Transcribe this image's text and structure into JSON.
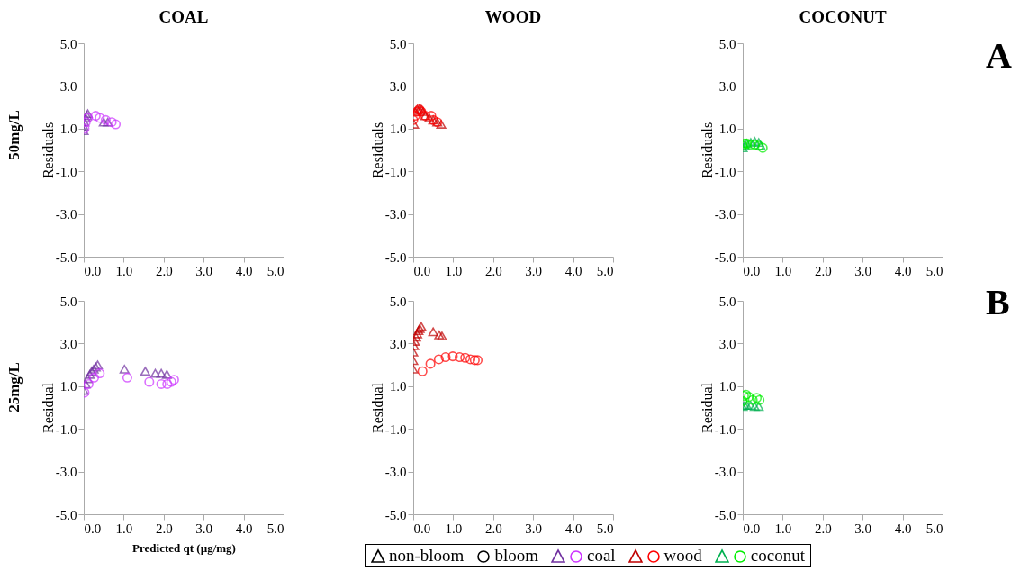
{
  "chart_data": [
    {
      "type": "scatter",
      "title": "COAL",
      "ylabel": "Residuals",
      "annotations": [
        "50mg/L"
      ],
      "legend": "bottom",
      "legend_title": "coal",
      "xlim": [
        0,
        5
      ],
      "ylim": [
        -5,
        5
      ],
      "xticks": [
        {
          "value": 0,
          "label": "0.0"
        },
        {
          "value": 1,
          "label": "1.0"
        },
        {
          "value": 2,
          "label": "2.0"
        },
        {
          "value": 3,
          "label": "3.0"
        },
        {
          "value": 4,
          "label": "4.0"
        },
        {
          "value": 5,
          "label": "5.0"
        }
      ],
      "yticks": [
        {
          "value": -5,
          "label": "-5.0"
        },
        {
          "value": -3,
          "label": "-3.0"
        },
        {
          "value": -1,
          "label": "-1.0"
        },
        {
          "value": 1,
          "label": "1.0"
        },
        {
          "value": 3,
          "label": "3.0"
        },
        {
          "value": 5,
          "label": "5.0"
        }
      ],
      "series": [
        {
          "name": "non-bloom",
          "color": "#7030a0",
          "marker": "triangle",
          "x": [
            0.0,
            0.0,
            0.02,
            0.05,
            0.08,
            0.1,
            0.5,
            0.6
          ],
          "values": [
            0.9,
            1.1,
            1.3,
            1.5,
            1.6,
            1.7,
            1.3,
            1.3
          ]
        },
        {
          "name": "bloom",
          "color": "#cc33ff",
          "marker": "circle",
          "x": [
            0.02,
            0.05,
            0.1,
            0.3,
            0.4,
            0.55,
            0.7,
            0.8
          ],
          "values": [
            1.0,
            1.3,
            1.5,
            1.6,
            1.5,
            1.4,
            1.3,
            1.2
          ]
        }
      ]
    },
    {
      "type": "scatter",
      "title": "WOOD",
      "ylabel": "Residuals",
      "legend_title": "wood",
      "xlim": [
        0,
        5
      ],
      "ylim": [
        -5,
        5
      ],
      "xticks": [
        {
          "value": 0,
          "label": "0.0"
        },
        {
          "value": 1,
          "label": "1.0"
        },
        {
          "value": 2,
          "label": "2.0"
        },
        {
          "value": 3,
          "label": "3.0"
        },
        {
          "value": 4,
          "label": "4.0"
        },
        {
          "value": 5,
          "label": "5.0"
        }
      ],
      "yticks": [
        {
          "value": -5,
          "label": "-5.0"
        },
        {
          "value": -3,
          "label": "-3.0"
        },
        {
          "value": -1,
          "label": "-1.0"
        },
        {
          "value": 1,
          "label": "1.0"
        },
        {
          "value": 3,
          "label": "3.0"
        },
        {
          "value": 5,
          "label": "5.0"
        }
      ],
      "series": [
        {
          "color": "#c00000",
          "marker": "triangle",
          "x": [
            0.02,
            0.05,
            0.1,
            0.15,
            0.2,
            0.25,
            0.3,
            0.4,
            0.5,
            0.6,
            0.7
          ],
          "values": [
            1.2,
            1.8,
            1.9,
            1.9,
            1.9,
            1.8,
            1.6,
            1.5,
            1.4,
            1.3,
            1.2
          ]
        },
        {
          "color": "#ff0000",
          "marker": "circle",
          "x": [
            0.0,
            0.05,
            0.1,
            0.15,
            0.2,
            0.3,
            0.45,
            0.5,
            0.6
          ],
          "values": [
            1.4,
            1.6,
            1.8,
            1.9,
            1.8,
            1.6,
            1.6,
            1.4,
            1.3
          ]
        }
      ]
    },
    {
      "type": "scatter",
      "title": "COCONUT",
      "ylabel": "Residuals",
      "annotations": [
        "A"
      ],
      "legend_title": "coconut",
      "xlim": [
        0,
        5
      ],
      "ylim": [
        -5,
        5
      ],
      "xticks": [
        {
          "value": 0,
          "label": "0.0"
        },
        {
          "value": 1,
          "label": "1.0"
        },
        {
          "value": 2,
          "label": "2.0"
        },
        {
          "value": 3,
          "label": "3.0"
        },
        {
          "value": 4,
          "label": "4.0"
        },
        {
          "value": 5,
          "label": "5.0"
        }
      ],
      "yticks": [
        {
          "value": -5,
          "label": "-5.0"
        },
        {
          "value": -3,
          "label": "-3.0"
        },
        {
          "value": -1,
          "label": "-1.0"
        },
        {
          "value": 1,
          "label": "1.0"
        },
        {
          "value": 3,
          "label": "3.0"
        },
        {
          "value": 5,
          "label": "5.0"
        }
      ],
      "series": [
        {
          "color": "#00b050",
          "marker": "triangle",
          "x": [
            0.0,
            0.05,
            0.1,
            0.2,
            0.3,
            0.4,
            0.45
          ],
          "values": [
            0.1,
            0.2,
            0.3,
            0.35,
            0.4,
            0.35,
            0.2
          ]
        },
        {
          "color": "#00ee00",
          "marker": "circle",
          "x": [
            0.0,
            0.05,
            0.1,
            0.2,
            0.3,
            0.4,
            0.5
          ],
          "values": [
            0.2,
            0.3,
            0.3,
            0.25,
            0.25,
            0.2,
            0.1
          ]
        }
      ]
    },
    {
      "type": "scatter",
      "ylabel": "Residual",
      "xlabel": "Predicted qt (µg/mg)",
      "annotations": [
        "25mg/L"
      ],
      "xlim": [
        0,
        5
      ],
      "ylim": [
        -5,
        5
      ],
      "xticks": [
        {
          "value": 0,
          "label": "0.0"
        },
        {
          "value": 1,
          "label": "1.0"
        },
        {
          "value": 2,
          "label": "2.0"
        },
        {
          "value": 3,
          "label": "3.0"
        },
        {
          "value": 4,
          "label": "4.0"
        },
        {
          "value": 5,
          "label": "5.0"
        }
      ],
      "yticks": [
        {
          "value": -5,
          "label": "-5.0"
        },
        {
          "value": -3,
          "label": "-3.0"
        },
        {
          "value": -1,
          "label": "-1.0"
        },
        {
          "value": 1,
          "label": "1.0"
        },
        {
          "value": 3,
          "label": "3.0"
        },
        {
          "value": 5,
          "label": "5.0"
        }
      ],
      "series": [
        {
          "color": "#7030a0",
          "marker": "triangle",
          "x": [
            0.0,
            0.05,
            0.1,
            0.15,
            0.2,
            0.25,
            0.3,
            0.35,
            1.02,
            1.54,
            1.79,
            1.94,
            2.08
          ],
          "values": [
            0.8,
            1.1,
            1.35,
            1.55,
            1.7,
            1.8,
            1.9,
            2.0,
            1.8,
            1.7,
            1.6,
            1.6,
            1.55
          ]
        },
        {
          "color": "#cc33ff",
          "marker": "circle",
          "x": [
            0.02,
            0.12,
            0.26,
            0.4,
            1.09,
            1.64,
            1.94,
            2.09,
            2.19,
            2.26
          ],
          "values": [
            0.7,
            1.1,
            1.4,
            1.6,
            1.4,
            1.2,
            1.1,
            1.1,
            1.2,
            1.3
          ]
        }
      ]
    },
    {
      "type": "scatter",
      "ylabel": "Residual",
      "xlim": [
        0,
        5
      ],
      "ylim": [
        -5,
        5
      ],
      "xticks": [
        {
          "value": 0,
          "label": "0.0"
        },
        {
          "value": 1,
          "label": "1.0"
        },
        {
          "value": 2,
          "label": "2.0"
        },
        {
          "value": 3,
          "label": "3.0"
        },
        {
          "value": 4,
          "label": "4.0"
        },
        {
          "value": 5,
          "label": "5.0"
        }
      ],
      "yticks": [
        {
          "value": -5,
          "label": "-5.0"
        },
        {
          "value": -3,
          "label": "-3.0"
        },
        {
          "value": -1,
          "label": "-1.0"
        },
        {
          "value": 1,
          "label": "1.0"
        },
        {
          "value": 3,
          "label": "3.0"
        },
        {
          "value": 5,
          "label": "5.0"
        }
      ],
      "series": [
        {
          "color": "#c00000",
          "marker": "triangle",
          "x": [
            0.0,
            0.0,
            0.0,
            0.02,
            0.04,
            0.07,
            0.1,
            0.13,
            0.16,
            0.2,
            0.5,
            0.65,
            0.72
          ],
          "values": [
            1.8,
            2.2,
            2.6,
            2.9,
            3.1,
            3.3,
            3.45,
            3.6,
            3.7,
            3.8,
            3.55,
            3.4,
            3.35
          ]
        },
        {
          "color": "#ff0000",
          "marker": "circle",
          "x": [
            0.23,
            0.43,
            0.64,
            0.81,
            0.99,
            1.16,
            1.3,
            1.43,
            1.54,
            1.61
          ],
          "values": [
            1.7,
            2.05,
            2.26,
            2.36,
            2.4,
            2.36,
            2.33,
            2.26,
            2.22,
            2.22
          ]
        }
      ]
    },
    {
      "type": "scatter",
      "annotations": [
        "B"
      ],
      "xlim": [
        0,
        5
      ],
      "ylim": [
        -5,
        5
      ],
      "ylabel": "Residual",
      "xticks": [
        {
          "value": 0,
          "label": "0.0"
        },
        {
          "value": 1,
          "label": "1.0"
        },
        {
          "value": 2,
          "label": "2.0"
        },
        {
          "value": 3,
          "label": "3.0"
        },
        {
          "value": 4,
          "label": "4.0"
        },
        {
          "value": 5,
          "label": "5.0"
        }
      ],
      "yticks": [
        {
          "value": -5,
          "label": "-5.0"
        },
        {
          "value": -3,
          "label": "-3.0"
        },
        {
          "value": -1,
          "label": "-1.0"
        },
        {
          "value": 1,
          "label": "1.0"
        },
        {
          "value": 3,
          "label": "3.0"
        },
        {
          "value": 5,
          "label": "5.0"
        }
      ],
      "series": [
        {
          "color": "#00b050",
          "marker": "triangle",
          "x": [
            0.0,
            0.05,
            0.1,
            0.2,
            0.3,
            0.4
          ],
          "values": [
            0.05,
            0.1,
            0.1,
            0.1,
            0.05,
            0.05
          ]
        },
        {
          "color": "#00ee00",
          "marker": "circle",
          "x": [
            0.0,
            0.03,
            0.08,
            0.15,
            0.25,
            0.35,
            0.42
          ],
          "values": [
            0.3,
            0.55,
            0.6,
            0.5,
            0.35,
            0.45,
            0.35
          ]
        }
      ]
    }
  ]
}
